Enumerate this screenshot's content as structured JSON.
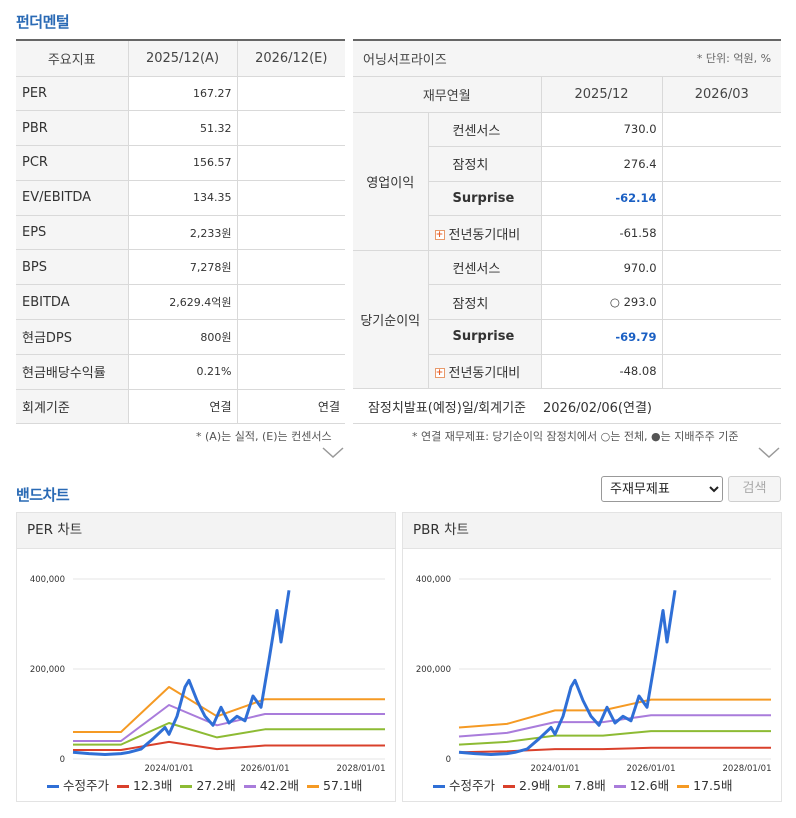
{
  "fundamental": {
    "title": "펀더멘털",
    "headers": [
      "주요지표",
      "2025/12(A)",
      "2026/12(E)"
    ],
    "rows": [
      {
        "label": "PER",
        "a": "167.27",
        "e": ""
      },
      {
        "label": "PBR",
        "a": "51.32",
        "e": ""
      },
      {
        "label": "PCR",
        "a": "156.57",
        "e": ""
      },
      {
        "label": "EV/EBITDA",
        "a": "134.35",
        "e": ""
      },
      {
        "label": "EPS",
        "a": "2,233원",
        "e": ""
      },
      {
        "label": "BPS",
        "a": "7,278원",
        "e": ""
      },
      {
        "label": "EBITDA",
        "a": "2,629.4억원",
        "e": ""
      },
      {
        "label": "현금DPS",
        "a": "800원",
        "e": ""
      },
      {
        "label": "현금배당수익률",
        "a": "0.21%",
        "e": ""
      },
      {
        "label": "회계기준",
        "a": "연결",
        "e": "연결"
      }
    ],
    "note": "* (A)는 실적, (E)는 컨센서스"
  },
  "earnings": {
    "title": "어닝서프라이즈",
    "unit": "* 단위: 억원, %",
    "headers": [
      "재무연월",
      "2025/12",
      "2026/03"
    ],
    "groups": [
      {
        "name": "영업이익",
        "rows": [
          {
            "label": "컨센서스",
            "v1": "730.0",
            "v2": ""
          },
          {
            "label": "잠정치",
            "v1": "276.4",
            "v2": ""
          },
          {
            "label": "Surprise",
            "v1": "-62.14",
            "v2": ""
          },
          {
            "label": "전년동기대비",
            "v1": "-61.58",
            "v2": ""
          }
        ]
      },
      {
        "name": "당기순이익",
        "rows": [
          {
            "label": "컨센서스",
            "v1": "970.0",
            "v2": ""
          },
          {
            "label": "잠정치",
            "v1": "○ 293.0",
            "v2": ""
          },
          {
            "label": "Surprise",
            "v1": "-69.79",
            "v2": ""
          },
          {
            "label": "전년동기대비",
            "v1": "-48.08",
            "v2": ""
          }
        ]
      }
    ],
    "footer_label": "잠정치발표(예정)일/회계기준",
    "footer_value": "2026/02/06(연결)",
    "note": "* 연결 재무제표: 당기순이익 잠정치에서 ○는 전체, ●는 지배주주 기준",
    "plus_icon": "+"
  },
  "band": {
    "title": "밴드차트",
    "select_value": "주재무제표",
    "search_label": "검색"
  },
  "chart_data": [
    {
      "type": "line",
      "title": "PER 차트",
      "x_ticks": [
        "2024/01/01",
        "2026/01/01",
        "2028/01/01"
      ],
      "y_ticks": [
        "400,000",
        "200,000",
        "0"
      ],
      "ylim": [
        0,
        400000
      ],
      "x_range": [
        "2022/01/01",
        "2028/07/01"
      ],
      "grid": true,
      "legend_position": "bottom",
      "series": [
        {
          "name": "수정주가",
          "color": "#2f6fd6",
          "points": [
            [
              "2022/01",
              15000
            ],
            [
              "2022/05",
              12000
            ],
            [
              "2022/09",
              10000
            ],
            [
              "2023/01",
              12000
            ],
            [
              "2023/03",
              15000
            ],
            [
              "2023/06",
              22000
            ],
            [
              "2023/09",
              45000
            ],
            [
              "2023/12",
              70000
            ],
            [
              "2024/01",
              55000
            ],
            [
              "2024/03",
              95000
            ],
            [
              "2024/05",
              160000
            ],
            [
              "2024/06",
              175000
            ],
            [
              "2024/08",
              130000
            ],
            [
              "2024/10",
              95000
            ],
            [
              "2024/12",
              75000
            ],
            [
              "2025/02",
              115000
            ],
            [
              "2025/04",
              80000
            ],
            [
              "2025/06",
              95000
            ],
            [
              "2025/08",
              85000
            ],
            [
              "2025/10",
              140000
            ],
            [
              "2025/12",
              115000
            ],
            [
              "2026/02",
              220000
            ],
            [
              "2026/04",
              330000
            ],
            [
              "2026/05",
              260000
            ],
            [
              "2026/07",
              375000
            ]
          ]
        },
        {
          "name": "12.3배",
          "color": "#d9402b",
          "points": [
            [
              "2022/01",
              20000
            ],
            [
              "2023/01",
              20000
            ],
            [
              "2024/01",
              38000
            ],
            [
              "2025/01",
              22000
            ],
            [
              "2026/01",
              30000
            ],
            [
              "2028/07",
              30000
            ]
          ]
        },
        {
          "name": "27.2배",
          "color": "#8dbb34",
          "points": [
            [
              "2022/01",
              32000
            ],
            [
              "2023/01",
              32000
            ],
            [
              "2024/01",
              80000
            ],
            [
              "2025/01",
              48000
            ],
            [
              "2026/01",
              66000
            ],
            [
              "2028/07",
              66000
            ]
          ]
        },
        {
          "name": "42.2배",
          "color": "#a97cdb",
          "points": [
            [
              "2022/01",
              40000
            ],
            [
              "2023/01",
              40000
            ],
            [
              "2024/01",
              120000
            ],
            [
              "2025/01",
              75000
            ],
            [
              "2026/01",
              100000
            ],
            [
              "2028/07",
              100000
            ]
          ]
        },
        {
          "name": "57.1배",
          "color": "#f59a24",
          "points": [
            [
              "2022/01",
              60000
            ],
            [
              "2023/01",
              60000
            ],
            [
              "2024/01",
              160000
            ],
            [
              "2025/01",
              95000
            ],
            [
              "2026/01",
              133000
            ],
            [
              "2028/07",
              133000
            ]
          ]
        }
      ]
    },
    {
      "type": "line",
      "title": "PBR 차트",
      "x_ticks": [
        "2024/01/01",
        "2026/01/01",
        "2028/01/01"
      ],
      "y_ticks": [
        "400,000",
        "200,000",
        "0"
      ],
      "ylim": [
        0,
        400000
      ],
      "x_range": [
        "2022/01/01",
        "2028/07/01"
      ],
      "grid": true,
      "legend_position": "bottom",
      "series": [
        {
          "name": "수정주가",
          "color": "#2f6fd6",
          "points": [
            [
              "2022/01",
              15000
            ],
            [
              "2022/05",
              12000
            ],
            [
              "2022/09",
              10000
            ],
            [
              "2023/01",
              12000
            ],
            [
              "2023/03",
              15000
            ],
            [
              "2023/06",
              22000
            ],
            [
              "2023/09",
              45000
            ],
            [
              "2023/12",
              70000
            ],
            [
              "2024/01",
              55000
            ],
            [
              "2024/03",
              95000
            ],
            [
              "2024/05",
              160000
            ],
            [
              "2024/06",
              175000
            ],
            [
              "2024/08",
              130000
            ],
            [
              "2024/10",
              95000
            ],
            [
              "2024/12",
              75000
            ],
            [
              "2025/02",
              115000
            ],
            [
              "2025/04",
              80000
            ],
            [
              "2025/06",
              95000
            ],
            [
              "2025/08",
              85000
            ],
            [
              "2025/10",
              140000
            ],
            [
              "2025/12",
              115000
            ],
            [
              "2026/02",
              220000
            ],
            [
              "2026/04",
              330000
            ],
            [
              "2026/05",
              260000
            ],
            [
              "2026/07",
              375000
            ]
          ]
        },
        {
          "name": "2.9배",
          "color": "#d9402b",
          "points": [
            [
              "2022/01",
              15000
            ],
            [
              "2023/01",
              17000
            ],
            [
              "2024/01",
              22000
            ],
            [
              "2025/01",
              22000
            ],
            [
              "2026/01",
              25000
            ],
            [
              "2028/07",
              25000
            ]
          ]
        },
        {
          "name": "7.8배",
          "color": "#8dbb34",
          "points": [
            [
              "2022/01",
              32000
            ],
            [
              "2023/01",
              38000
            ],
            [
              "2024/01",
              52000
            ],
            [
              "2025/01",
              52000
            ],
            [
              "2026/01",
              62000
            ],
            [
              "2028/07",
              62000
            ]
          ]
        },
        {
          "name": "12.6배",
          "color": "#a97cdb",
          "points": [
            [
              "2022/01",
              50000
            ],
            [
              "2023/01",
              58000
            ],
            [
              "2024/01",
              82000
            ],
            [
              "2025/01",
              82000
            ],
            [
              "2026/01",
              97000
            ],
            [
              "2028/07",
              97000
            ]
          ]
        },
        {
          "name": "17.5배",
          "color": "#f59a24",
          "points": [
            [
              "2022/01",
              70000
            ],
            [
              "2023/01",
              78000
            ],
            [
              "2024/01",
              108000
            ],
            [
              "2025/01",
              108000
            ],
            [
              "2026/01",
              132000
            ],
            [
              "2028/07",
              132000
            ]
          ]
        }
      ]
    }
  ]
}
